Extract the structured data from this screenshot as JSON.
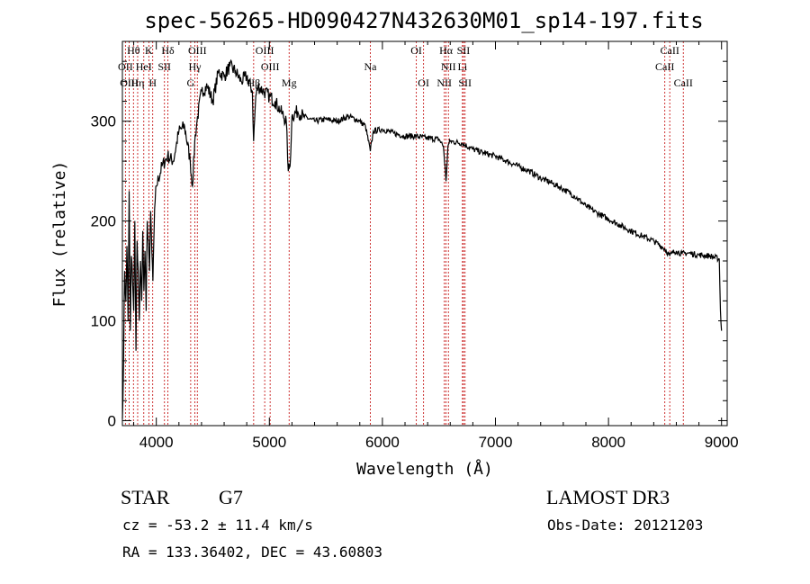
{
  "chart_data": {
    "type": "line",
    "title": "spec-56265-HD090427N432630M01_sp14-197.fits",
    "xlabel": "Wavelength (Å)",
    "ylabel": "Flux (relative)",
    "xlim": [
      3700,
      9050
    ],
    "ylim": [
      -5,
      380
    ],
    "x_ticks": [
      4000,
      5000,
      6000,
      7000,
      8000,
      9000
    ],
    "y_ticks": [
      0,
      100,
      200,
      300
    ],
    "series": [
      {
        "name": "flux",
        "x": [
          3700,
          3710,
          3720,
          3730,
          3740,
          3750,
          3760,
          3770,
          3780,
          3790,
          3800,
          3810,
          3820,
          3830,
          3840,
          3850,
          3860,
          3870,
          3880,
          3890,
          3900,
          3910,
          3920,
          3930,
          3940,
          3950,
          3960,
          3970,
          3980,
          3990,
          4000,
          4050,
          4100,
          4150,
          4200,
          4250,
          4300,
          4320,
          4340,
          4360,
          4400,
          4450,
          4500,
          4550,
          4600,
          4650,
          4700,
          4750,
          4800,
          4850,
          4861,
          4880,
          4900,
          4950,
          5000,
          5050,
          5100,
          5150,
          5167,
          5183,
          5200,
          5250,
          5300,
          5400,
          5500,
          5600,
          5700,
          5800,
          5850,
          5893,
          5920,
          6000,
          6100,
          6200,
          6300,
          6400,
          6500,
          6540,
          6563,
          6580,
          6600,
          6700,
          6800,
          6900,
          7000,
          7100,
          7200,
          7300,
          7400,
          7500,
          7600,
          7700,
          7800,
          7900,
          8000,
          8100,
          8200,
          8300,
          8400,
          8500,
          8542,
          8560,
          8600,
          8650,
          8700,
          8800,
          8900,
          8980,
          8990,
          9000
        ],
        "values": [
          2,
          60,
          150,
          120,
          175,
          100,
          230,
          90,
          165,
          140,
          110,
          200,
          70,
          180,
          150,
          100,
          160,
          120,
          190,
          130,
          170,
          110,
          200,
          180,
          150,
          210,
          170,
          140,
          190,
          220,
          235,
          255,
          265,
          260,
          290,
          295,
          260,
          235,
          280,
          300,
          330,
          335,
          320,
          350,
          345,
          355,
          350,
          340,
          345,
          330,
          280,
          325,
          335,
          330,
          325,
          320,
          310,
          300,
          250,
          255,
          305,
          310,
          305,
          300,
          302,
          300,
          305,
          300,
          295,
          270,
          290,
          292,
          288,
          285,
          285,
          283,
          282,
          275,
          240,
          275,
          280,
          278,
          272,
          268,
          265,
          260,
          255,
          250,
          243,
          238,
          232,
          225,
          215,
          208,
          202,
          196,
          190,
          185,
          180,
          172,
          165,
          168,
          170,
          167,
          168,
          166,
          165,
          162,
          110,
          90
        ]
      }
    ],
    "spectral_lines": [
      {
        "name": "Hθ",
        "wavelength": 3798,
        "row": 0
      },
      {
        "name": "K",
        "wavelength": 3934,
        "row": 0
      },
      {
        "name": "Hδ",
        "wavelength": 4102,
        "row": 0
      },
      {
        "name": "OIII",
        "wavelength": 4363,
        "row": 0
      },
      {
        "name": "OIII",
        "wavelength": 4959,
        "row": 0
      },
      {
        "name": "OI",
        "wavelength": 6300,
        "row": 0
      },
      {
        "name": "Hα",
        "wavelength": 6563,
        "row": 0
      },
      {
        "name": "SII",
        "wavelength": 6717,
        "row": 0
      },
      {
        "name": "CaII",
        "wavelength": 8542,
        "row": 0
      },
      {
        "name": "OII",
        "wavelength": 3727,
        "row": 1
      },
      {
        "name": "HeI",
        "wavelength": 3889,
        "row": 1
      },
      {
        "name": "SII",
        "wavelength": 4072,
        "row": 1
      },
      {
        "name": "Hγ",
        "wavelength": 4341,
        "row": 1
      },
      {
        "name": "OIII",
        "wavelength": 5007,
        "row": 1
      },
      {
        "name": "Na",
        "wavelength": 5893,
        "row": 1
      },
      {
        "name": "NII",
        "wavelength": 6584,
        "row": 1
      },
      {
        "name": "Li",
        "wavelength": 6708,
        "row": 1
      },
      {
        "name": "CaII",
        "wavelength": 8498,
        "row": 1
      },
      {
        "name": "OIII",
        "wavelength": 3760,
        "row": 2
      },
      {
        "name": "Hη",
        "wavelength": 3835,
        "row": 2
      },
      {
        "name": "H",
        "wavelength": 3968,
        "row": 2
      },
      {
        "name": "G",
        "wavelength": 4304,
        "row": 2
      },
      {
        "name": "Hβ",
        "wavelength": 4861,
        "row": 2
      },
      {
        "name": "Mg",
        "wavelength": 5175,
        "row": 2
      },
      {
        "name": "OI",
        "wavelength": 6364,
        "row": 2
      },
      {
        "name": "NII",
        "wavelength": 6548,
        "row": 2
      },
      {
        "name": "SII",
        "wavelength": 6731,
        "row": 2
      },
      {
        "name": "CaII",
        "wavelength": 8662,
        "row": 2
      }
    ]
  },
  "info": {
    "class_label": "STAR",
    "subclass": "G7",
    "survey": "LAMOST DR3",
    "redshift": "cz = -53.2 ± 11.4 km/s",
    "obs_date": "Obs-Date: 20121203",
    "coords": "RA = 133.36402, DEC =  43.60803"
  }
}
